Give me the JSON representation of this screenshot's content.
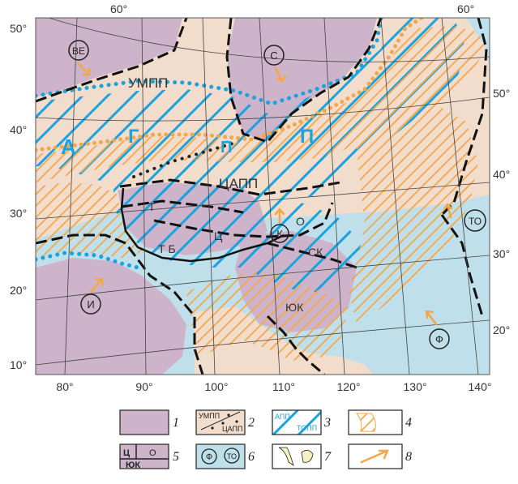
{
  "colors": {
    "ocean": "#bfe0ea",
    "craton": "#cdb4cb",
    "fold_belt": "#f2dccb",
    "blue_hatch": "#1aa3dc",
    "orange_hatch": "#f4a64a",
    "boundary": "#111111",
    "grid": "#444444"
  },
  "axes": {
    "top_labels": [
      "60°",
      "60°"
    ],
    "left_labels": [
      "50°",
      "40°",
      "30°",
      "20°",
      "10°"
    ],
    "right_labels": [
      "50°",
      "40°",
      "30°",
      "20°"
    ],
    "bottom_labels": [
      "80°",
      "90°",
      "100°",
      "110°",
      "120°",
      "130°",
      "140°"
    ]
  },
  "regions": {
    "umpp": "УМПП",
    "tsapp": "ЦАПП",
    "t": "Т",
    "tb": "Т Б",
    "ts": "Ц",
    "o": "О",
    "sk": "СК",
    "yuk": "ЮК"
  },
  "belt_letters": [
    "А",
    "Г",
    "П",
    "П"
  ],
  "circled": {
    "ve": "ВЕ",
    "s": "С",
    "k": "К",
    "i": "И",
    "to": "ТО",
    "f": "Ф"
  },
  "legend": {
    "numbers": [
      "1",
      "2",
      "3",
      "4",
      "5",
      "6",
      "7",
      "8"
    ],
    "box2_labels": [
      "УМПП",
      "ЦАПП"
    ],
    "box3_labels": [
      "АПП",
      "ТОПП"
    ],
    "box5_labels": [
      "Ц",
      "О",
      "ЮК"
    ],
    "box6_labels": [
      "Ф",
      "ТО"
    ]
  }
}
